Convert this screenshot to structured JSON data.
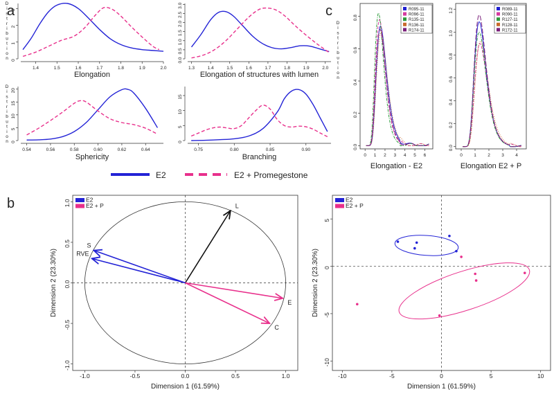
{
  "panel_letters": {
    "a": "a",
    "b": "b",
    "c": "c"
  },
  "legend_a": {
    "e2": "E2",
    "e2p": "E2 + Promegestone"
  },
  "colors": {
    "e2": "#2323d6",
    "e2p": "#e8308c",
    "black": "#111111"
  },
  "chart_data": [
    {
      "panel": "a1",
      "type": "line",
      "ylabel": "Distribution",
      "xlabel": "Elongation",
      "xlim": [
        1.33,
        2.0
      ],
      "ylim": [
        0,
        3.3
      ],
      "xticks": [
        "1.4",
        "1.5",
        "1.6",
        "1.7",
        "1.8",
        "1.9",
        "2.0"
      ],
      "yticks": [
        "0",
        "1",
        "2",
        "3"
      ],
      "series": [
        {
          "key": "e2",
          "style": "solid",
          "x": [
            1.34,
            1.38,
            1.42,
            1.46,
            1.5,
            1.55,
            1.6,
            1.65,
            1.7,
            1.75,
            1.8,
            1.85,
            1.9,
            1.95,
            2.0
          ],
          "y": [
            0.55,
            1.25,
            2.1,
            2.8,
            3.2,
            3.3,
            3.0,
            2.4,
            1.75,
            1.2,
            0.85,
            0.65,
            0.55,
            0.5,
            0.45
          ]
        },
        {
          "key": "e2p",
          "style": "dashed",
          "x": [
            1.34,
            1.4,
            1.46,
            1.52,
            1.58,
            1.63,
            1.68,
            1.72,
            1.76,
            1.8,
            1.85,
            1.9,
            1.95,
            1.98
          ],
          "y": [
            0.15,
            0.4,
            0.75,
            1.1,
            1.35,
            1.85,
            2.6,
            3.05,
            2.95,
            2.55,
            1.9,
            1.3,
            0.75,
            0.55
          ]
        }
      ]
    },
    {
      "panel": "a2",
      "type": "line",
      "xlabel": "Elongation of structures with lumen",
      "xlim": [
        1.28,
        2.03
      ],
      "ylim": [
        0,
        3.05
      ],
      "xticks": [
        "1.3",
        "1.4",
        "1.5",
        "1.6",
        "1.7",
        "1.8",
        "1.9",
        "2.0"
      ],
      "yticks": [
        "0.0",
        "0.5",
        "1.0",
        "1.5",
        "2.0",
        "2.5",
        "3.0"
      ],
      "series": [
        {
          "key": "e2",
          "style": "solid",
          "x": [
            1.3,
            1.35,
            1.4,
            1.44,
            1.48,
            1.52,
            1.57,
            1.62,
            1.67,
            1.72,
            1.77,
            1.82,
            1.87,
            1.92,
            1.97,
            2.02
          ],
          "y": [
            0.65,
            1.35,
            2.15,
            2.55,
            2.6,
            2.35,
            1.8,
            1.25,
            0.85,
            0.62,
            0.55,
            0.62,
            0.72,
            0.7,
            0.55,
            0.4
          ]
        },
        {
          "key": "e2p",
          "style": "dashed",
          "x": [
            1.3,
            1.36,
            1.42,
            1.48,
            1.54,
            1.6,
            1.65,
            1.69,
            1.74,
            1.79,
            1.84,
            1.9,
            1.96,
            2.02
          ],
          "y": [
            0.05,
            0.2,
            0.5,
            1.0,
            1.65,
            2.3,
            2.7,
            2.8,
            2.7,
            2.35,
            1.85,
            1.3,
            0.8,
            0.35
          ]
        }
      ]
    },
    {
      "panel": "a3",
      "type": "line",
      "ylabel": "Distribution",
      "xlabel": "Sphericity",
      "xlim": [
        0.535,
        0.655
      ],
      "ylim": [
        0,
        21
      ],
      "xticks": [
        "0.54",
        "0.56",
        "0.58",
        "0.60",
        "0.62",
        "0.64"
      ],
      "yticks": [
        "0",
        "5",
        "10",
        "15",
        "20"
      ],
      "series": [
        {
          "key": "e2",
          "style": "solid",
          "x": [
            0.54,
            0.55,
            0.56,
            0.57,
            0.58,
            0.59,
            0.6,
            0.61,
            0.62,
            0.625,
            0.63,
            0.64,
            0.65
          ],
          "y": [
            0.2,
            0.3,
            0.6,
            1.5,
            3.5,
            7.0,
            12.0,
            17.0,
            19.8,
            19.9,
            18.5,
            12.5,
            5.0
          ]
        },
        {
          "key": "e2p",
          "style": "dashed",
          "x": [
            0.54,
            0.55,
            0.56,
            0.57,
            0.58,
            0.585,
            0.59,
            0.6,
            0.61,
            0.62,
            0.63,
            0.64,
            0.65
          ],
          "y": [
            2.2,
            4.8,
            7.8,
            11.0,
            14.5,
            15.5,
            15.0,
            11.5,
            8.5,
            7.0,
            6.2,
            4.8,
            2.5
          ]
        }
      ]
    },
    {
      "panel": "a4",
      "type": "line",
      "xlabel": "Branching",
      "xlim": [
        0.735,
        0.935
      ],
      "ylim": [
        0,
        18
      ],
      "xticks": [
        "0.75",
        "0.80",
        "0.85",
        "0.90"
      ],
      "yticks": [
        "0",
        "5",
        "10",
        "15"
      ],
      "series": [
        {
          "key": "e2",
          "style": "solid",
          "x": [
            0.74,
            0.76,
            0.78,
            0.8,
            0.82,
            0.84,
            0.86,
            0.87,
            0.88,
            0.89,
            0.9,
            0.91,
            0.92,
            0.93
          ],
          "y": [
            0.0,
            0.1,
            0.3,
            0.6,
            1.5,
            4.0,
            9.5,
            14.0,
            16.5,
            17.0,
            15.5,
            12.0,
            7.5,
            3.0
          ]
        },
        {
          "key": "e2p",
          "style": "dashed",
          "x": [
            0.74,
            0.75,
            0.76,
            0.77,
            0.78,
            0.79,
            0.8,
            0.81,
            0.82,
            0.83,
            0.84,
            0.85,
            0.86,
            0.87,
            0.88,
            0.89,
            0.9,
            0.91,
            0.92,
            0.93
          ],
          "y": [
            1.5,
            2.5,
            3.5,
            4.2,
            4.5,
            4.2,
            4.0,
            5.0,
            7.5,
            10.0,
            11.8,
            10.5,
            7.0,
            5.0,
            4.5,
            4.8,
            4.6,
            3.8,
            2.5,
            1.3
          ]
        }
      ]
    },
    {
      "panel": "b1",
      "type": "line",
      "xlabel": "Dimension 1 (61.59%)",
      "ylabel": "Dimension 2 (23.30%)",
      "xlim": [
        -1.12,
        1.12
      ],
      "ylim": [
        -1.08,
        1.08
      ],
      "xticks": [
        "-1.0",
        "-0.5",
        "0.0",
        "0.5",
        "1.0"
      ],
      "yticks": [
        "-1.0",
        "-0.5",
        "0.0",
        "0.5",
        "1.0"
      ],
      "legend": [
        {
          "key": "e2",
          "label": "E2"
        },
        {
          "key": "e2p",
          "label": "E2 + P"
        }
      ],
      "vectors": [
        {
          "label": "L",
          "x": 0.45,
          "y": 0.89,
          "color": "black"
        },
        {
          "label": "S",
          "x": -0.91,
          "y": 0.4,
          "color": "e2"
        },
        {
          "label": "RVE",
          "x": -0.93,
          "y": 0.3,
          "color": "e2"
        },
        {
          "label": "E",
          "x": 0.97,
          "y": -0.19,
          "color": "e2p"
        },
        {
          "label": "C",
          "x": 0.84,
          "y": -0.5,
          "color": "e2p"
        }
      ]
    },
    {
      "panel": "b2",
      "type": "scatter",
      "xlabel": "Dimension 1 (61.59%)",
      "ylabel": "Dimension 2 (23.30%)",
      "xlim": [
        -11,
        11
      ],
      "ylim": [
        -11,
        7.5
      ],
      "xticks": [
        "-10",
        "-5",
        "0",
        "5",
        "10"
      ],
      "yticks": [
        "-10",
        "-5",
        "0",
        "5"
      ],
      "legend": [
        {
          "key": "e2",
          "label": "E2"
        },
        {
          "key": "e2p",
          "label": "E2 + P"
        }
      ],
      "series": [
        {
          "key": "e2",
          "x": [
            -4.4,
            -2.5,
            -2.7,
            0.8,
            1.5
          ],
          "y": [
            2.6,
            2.5,
            1.9,
            3.2,
            1.6
          ]
        },
        {
          "key": "e2p",
          "x": [
            -8.5,
            -0.2,
            2.0,
            3.4,
            3.5,
            8.4
          ],
          "y": [
            -4.0,
            -5.2,
            1.0,
            -0.8,
            -1.5,
            -0.7
          ]
        }
      ],
      "ellipses": [
        {
          "key": "e2",
          "cx": -1.5,
          "cy": 2.2,
          "rx": 3.2,
          "ry": 1.05,
          "angle_deg": -4
        },
        {
          "key": "e2p",
          "cx": 2.3,
          "cy": -2.6,
          "rx": 6.9,
          "ry": 2.05,
          "angle_deg": 18
        }
      ]
    },
    {
      "panel": "c1",
      "type": "line",
      "ylabel": "Distribution",
      "xlabel": "Elongation - E2",
      "xlim": [
        -0.5,
        6.8
      ],
      "ylim": [
        -0.02,
        0.88
      ],
      "xticks": [
        "0",
        "1",
        "2",
        "3",
        "4",
        "5",
        "6"
      ],
      "yticks": [
        "0.0",
        "0.2",
        "0.4",
        "0.6",
        "0.8"
      ],
      "legend": [
        {
          "label": "R095-11",
          "color": "#1f1fd1"
        },
        {
          "label": "R096-11",
          "color": "#d63aa0"
        },
        {
          "label": "R135-11",
          "color": "#2d9b3b"
        },
        {
          "label": "R136-11",
          "color": "#c86a2b"
        },
        {
          "label": "R174-11",
          "color": "#7a1f7a"
        }
      ],
      "series": [
        {
          "label": "R095-11",
          "style": "solid",
          "peak": 0.74,
          "mode": 1.55
        },
        {
          "label": "R096-11",
          "style": "dashed",
          "peak": 0.78,
          "mode": 1.45
        },
        {
          "label": "R135-11",
          "style": "dotdash",
          "peak": 0.82,
          "mode": 1.35
        },
        {
          "label": "R136-11",
          "style": "dotted",
          "peak": 0.7,
          "mode": 1.6
        },
        {
          "label": "R174-11",
          "style": "longdash",
          "peak": 0.72,
          "mode": 1.5
        }
      ]
    },
    {
      "panel": "c2",
      "type": "line",
      "xlabel": "Elongation E2 + P",
      "xlim": [
        -0.4,
        4.7
      ],
      "ylim": [
        -0.02,
        1.25
      ],
      "xticks": [
        "0",
        "1",
        "2",
        "3",
        "4"
      ],
      "yticks": [
        "0.0",
        "0.2",
        "0.4",
        "0.6",
        "0.8",
        "1.0",
        "1.2"
      ],
      "legend": [
        {
          "label": "R089-11",
          "color": "#1f1fd1"
        },
        {
          "label": "R090-11",
          "color": "#d63aa0"
        },
        {
          "label": "R127-11",
          "color": "#2d9b3b"
        },
        {
          "label": "R128-11",
          "color": "#c86a2b"
        },
        {
          "label": "R172-11",
          "color": "#7a1f7a"
        }
      ],
      "series": [
        {
          "label": "R089-11",
          "style": "solid",
          "peak": 1.09,
          "mode": 1.3
        },
        {
          "label": "R090-11",
          "style": "dashed",
          "peak": 0.9,
          "mode": 1.35
        },
        {
          "label": "R127-11",
          "style": "dotdash",
          "peak": 1.0,
          "mode": 1.3
        },
        {
          "label": "R128-11",
          "style": "dotted",
          "peak": 0.92,
          "mode": 1.4
        },
        {
          "label": "R172-11",
          "style": "longdash",
          "peak": 1.15,
          "mode": 1.3
        }
      ]
    }
  ]
}
